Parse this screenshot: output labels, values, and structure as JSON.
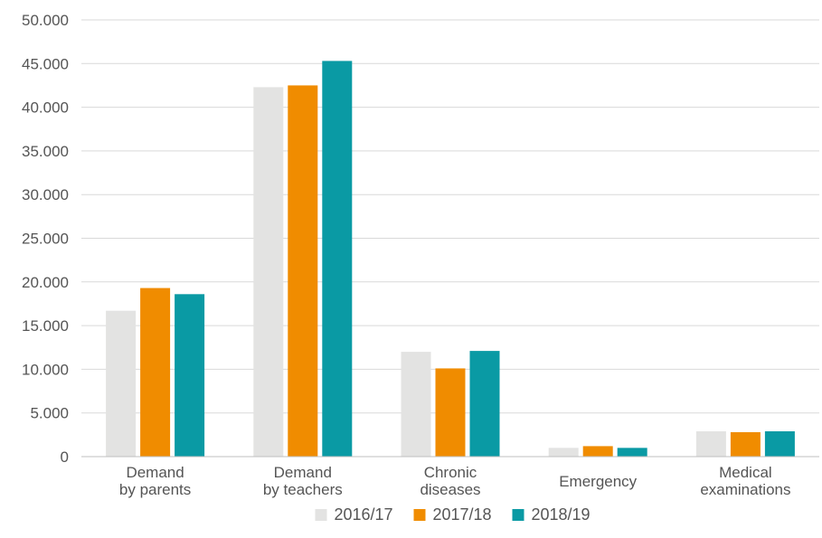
{
  "chart_data": {
    "type": "bar",
    "title": "",
    "xlabel": "",
    "ylabel": "",
    "ylim": [
      0,
      50000
    ],
    "yticks": [
      "0",
      "5.000",
      "10.000",
      "15.000",
      "20.000",
      "25.000",
      "30.000",
      "35.000",
      "40.000",
      "45.000",
      "50.000"
    ],
    "grid": true,
    "legend_position": "bottom-center",
    "categories": [
      [
        "Demand",
        "by parents"
      ],
      [
        "Demand",
        "by teachers"
      ],
      [
        "Chronic",
        "diseases"
      ],
      [
        "Emergency"
      ],
      [
        "Medical",
        "examinations"
      ]
    ],
    "series": [
      {
        "name": "2016/17",
        "color": "#e3e3e2",
        "values": [
          16700,
          42300,
          12000,
          1000,
          2900
        ]
      },
      {
        "name": "2017/18",
        "color": "#f08c00",
        "values": [
          19300,
          42500,
          10100,
          1200,
          2800
        ]
      },
      {
        "name": "2018/19",
        "color": "#0a9aa4",
        "values": [
          18600,
          45300,
          12100,
          1000,
          2900
        ]
      }
    ]
  }
}
